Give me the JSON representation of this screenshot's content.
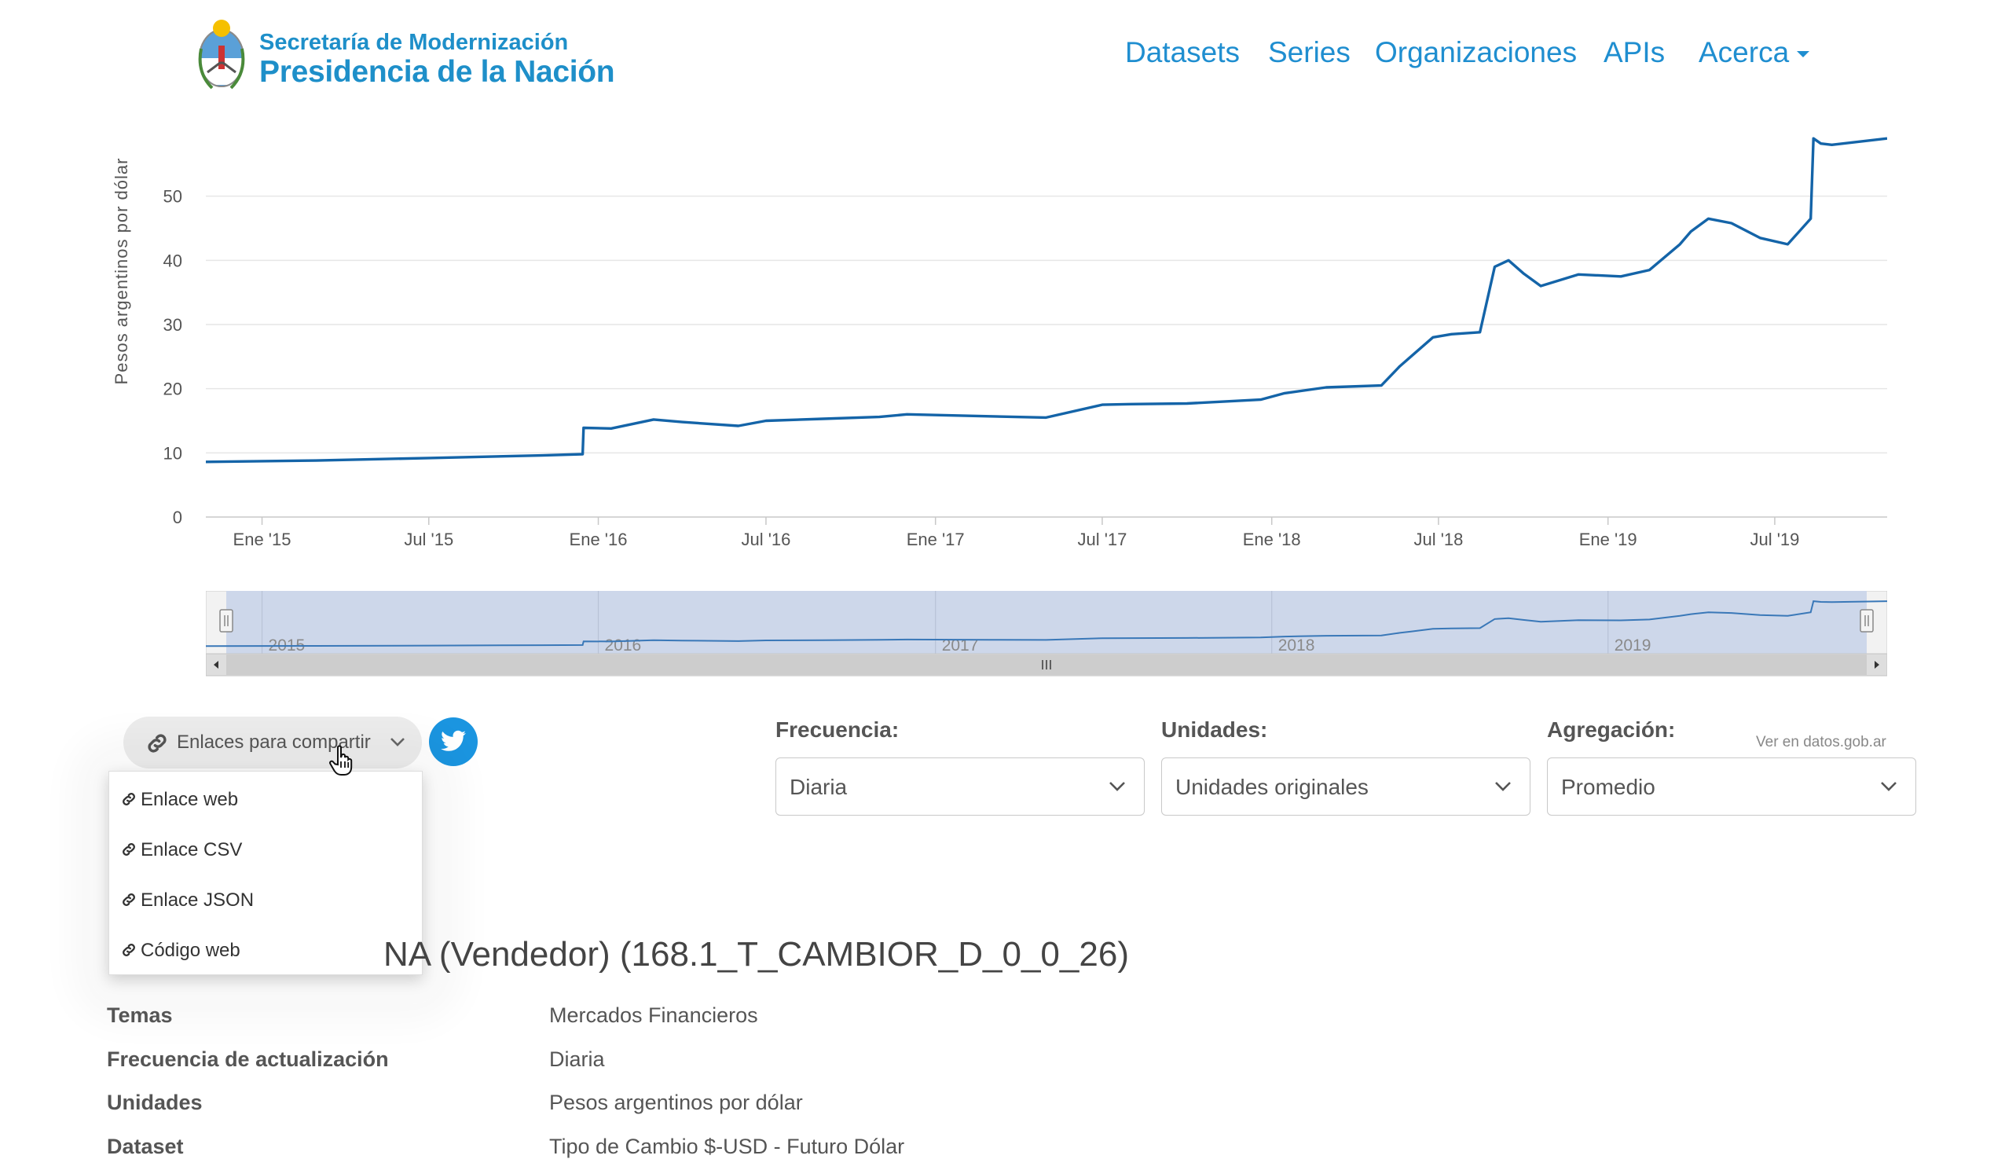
{
  "header": {
    "logo_line1": "Secretaría de Modernización",
    "logo_line2": "Presidencia de la Nación",
    "nav": [
      {
        "label": "Datasets"
      },
      {
        "label": "Series"
      },
      {
        "label": "Organizaciones"
      },
      {
        "label": "APIs"
      },
      {
        "label": "Acerca"
      }
    ],
    "brand_color": "#1e8fc9"
  },
  "chart_data": {
    "type": "line",
    "ylabel": "Pesos argentinos por dólar",
    "ylim": [
      0,
      60
    ],
    "yticks": [
      0,
      10,
      20,
      30,
      40,
      50
    ],
    "x_range": [
      "2014-11-01",
      "2019-10-31"
    ],
    "xtick_labels": [
      "Ene '15",
      "Jul '15",
      "Ene '16",
      "Jul '16",
      "Ene '17",
      "Jul '17",
      "Ene '18",
      "Jul '18",
      "Ene '19",
      "Jul '19"
    ],
    "xtick_dates": [
      "2015-01-01",
      "2015-07-01",
      "2016-01-01",
      "2016-07-01",
      "2017-01-01",
      "2017-07-01",
      "2018-01-01",
      "2018-07-01",
      "2019-01-01",
      "2019-07-01"
    ],
    "grid": true,
    "line_color": "#1464a8",
    "series": [
      {
        "x": [
          "2014-11-01",
          "2015-03-01",
          "2015-07-01",
          "2015-11-01",
          "2015-12-15",
          "2015-12-16",
          "2016-01-15",
          "2016-03-01",
          "2016-04-01",
          "2016-06-01",
          "2016-07-01",
          "2016-09-01",
          "2016-11-01",
          "2016-12-01",
          "2017-03-01",
          "2017-05-01",
          "2017-07-01",
          "2017-08-01",
          "2017-10-01",
          "2017-12-20",
          "2018-01-15",
          "2018-03-01",
          "2018-04-30",
          "2018-05-20",
          "2018-06-01",
          "2018-06-25",
          "2018-07-15",
          "2018-08-15",
          "2018-08-31",
          "2018-09-15",
          "2018-10-01",
          "2018-10-20",
          "2018-11-30",
          "2019-01-15",
          "2019-02-15",
          "2019-03-20",
          "2019-04-01",
          "2019-04-20",
          "2019-05-15",
          "2019-06-15",
          "2019-07-15",
          "2019-08-09",
          "2019-08-12",
          "2019-08-20",
          "2019-09-01",
          "2019-10-31"
        ],
        "y": [
          8.6,
          8.8,
          9.2,
          9.6,
          9.8,
          13.9,
          13.8,
          15.2,
          14.8,
          14.2,
          15.0,
          15.3,
          15.6,
          16.0,
          15.7,
          15.5,
          17.5,
          17.6,
          17.7,
          18.3,
          19.3,
          20.2,
          20.5,
          23.5,
          25.0,
          28.0,
          28.5,
          28.8,
          39.0,
          40.0,
          38.0,
          36.0,
          37.8,
          37.5,
          38.5,
          42.5,
          44.5,
          46.5,
          45.8,
          43.5,
          42.5,
          46.5,
          59.0,
          58.2,
          58.0,
          59.0
        ]
      }
    ],
    "navigator_labels": [
      "2015",
      "2016",
      "2017",
      "2018",
      "2019"
    ],
    "navigator_label_dates": [
      "2015-01-01",
      "2016-01-01",
      "2017-01-01",
      "2018-01-01",
      "2019-01-01"
    ]
  },
  "share": {
    "button_label": "Enlaces para compartir",
    "menu": [
      "Enlace web",
      "Enlace CSV",
      "Enlace JSON",
      "Código web"
    ]
  },
  "controls": {
    "frequency": {
      "label": "Frecuencia:",
      "value": "Diaria"
    },
    "units": {
      "label": "Unidades:",
      "value": "Unidades originales"
    },
    "aggregation": {
      "label": "Agregación:",
      "value": "Promedio"
    },
    "datos_link": "Ver en datos.gob.ar"
  },
  "series_title_visible": "NA (Vendedor) (168.1_T_CAMBIOR_D_0_0_26)",
  "metadata": [
    {
      "label": "Temas",
      "value": "Mercados Financieros"
    },
    {
      "label": "Frecuencia de actualización",
      "value": "Diaria"
    },
    {
      "label": "Unidades",
      "value": "Pesos argentinos por dólar"
    },
    {
      "label": "Dataset",
      "value": "Tipo de Cambio $-USD - Futuro Dólar"
    }
  ]
}
